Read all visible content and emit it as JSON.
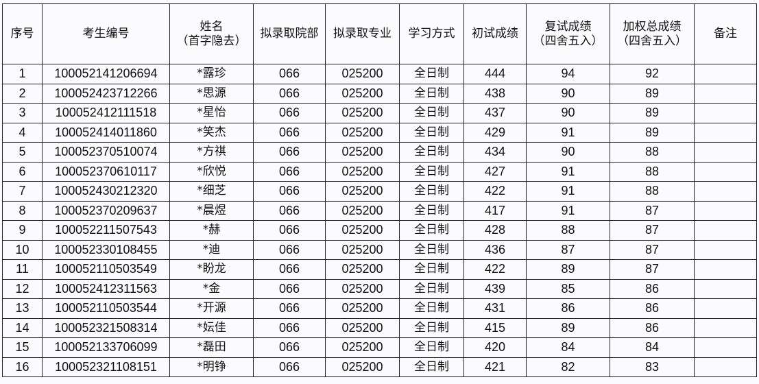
{
  "headers": [
    "序号",
    "考生编号",
    "姓名\n（首字隐去）",
    "拟录取院部",
    "拟录取专业",
    "学习方式",
    "初试成绩",
    "复试成绩\n（四舍五入）",
    "加权总成绩\n（四舍五入）",
    "备注"
  ],
  "rows": [
    [
      "1",
      "100052141206694",
      "*露珍",
      "066",
      "025200",
      "全日制",
      "444",
      "94",
      "92",
      ""
    ],
    [
      "2",
      "100052423712266",
      "*思源",
      "066",
      "025200",
      "全日制",
      "438",
      "90",
      "89",
      ""
    ],
    [
      "3",
      "100052412111518",
      "*星怡",
      "066",
      "025200",
      "全日制",
      "437",
      "90",
      "89",
      ""
    ],
    [
      "4",
      "100052414011860",
      "*笑杰",
      "066",
      "025200",
      "全日制",
      "429",
      "91",
      "89",
      ""
    ],
    [
      "5",
      "100052370510074",
      "*方祺",
      "066",
      "025200",
      "全日制",
      "434",
      "90",
      "88",
      ""
    ],
    [
      "6",
      "100052370610117",
      "*欣悦",
      "066",
      "025200",
      "全日制",
      "427",
      "91",
      "88",
      ""
    ],
    [
      "7",
      "100052430212320",
      "*细芝",
      "066",
      "025200",
      "全日制",
      "422",
      "91",
      "88",
      ""
    ],
    [
      "8",
      "100052370209637",
      "*晨煜",
      "066",
      "025200",
      "全日制",
      "417",
      "91",
      "87",
      ""
    ],
    [
      "9",
      "100052211507543",
      "*赫",
      "066",
      "025200",
      "全日制",
      "428",
      "88",
      "87",
      ""
    ],
    [
      "10",
      "100052330108455",
      "*迪",
      "066",
      "025200",
      "全日制",
      "436",
      "87",
      "87",
      ""
    ],
    [
      "11",
      "100052110503549",
      "*盼龙",
      "066",
      "025200",
      "全日制",
      "422",
      "89",
      "87",
      ""
    ],
    [
      "12",
      "100052412311563",
      "*金",
      "066",
      "025200",
      "全日制",
      "439",
      "85",
      "86",
      ""
    ],
    [
      "13",
      "100052110503544",
      "*开源",
      "066",
      "025200",
      "全日制",
      "431",
      "86",
      "86",
      ""
    ],
    [
      "14",
      "100052321508314",
      "*妘佳",
      "066",
      "025200",
      "全日制",
      "415",
      "89",
      "86",
      ""
    ],
    [
      "15",
      "100052133706099",
      "*磊田",
      "066",
      "025200",
      "全日制",
      "420",
      "84",
      "84",
      ""
    ],
    [
      "16",
      "100052321108151",
      "*明铮",
      "066",
      "025200",
      "全日制",
      "421",
      "82",
      "83",
      ""
    ]
  ]
}
